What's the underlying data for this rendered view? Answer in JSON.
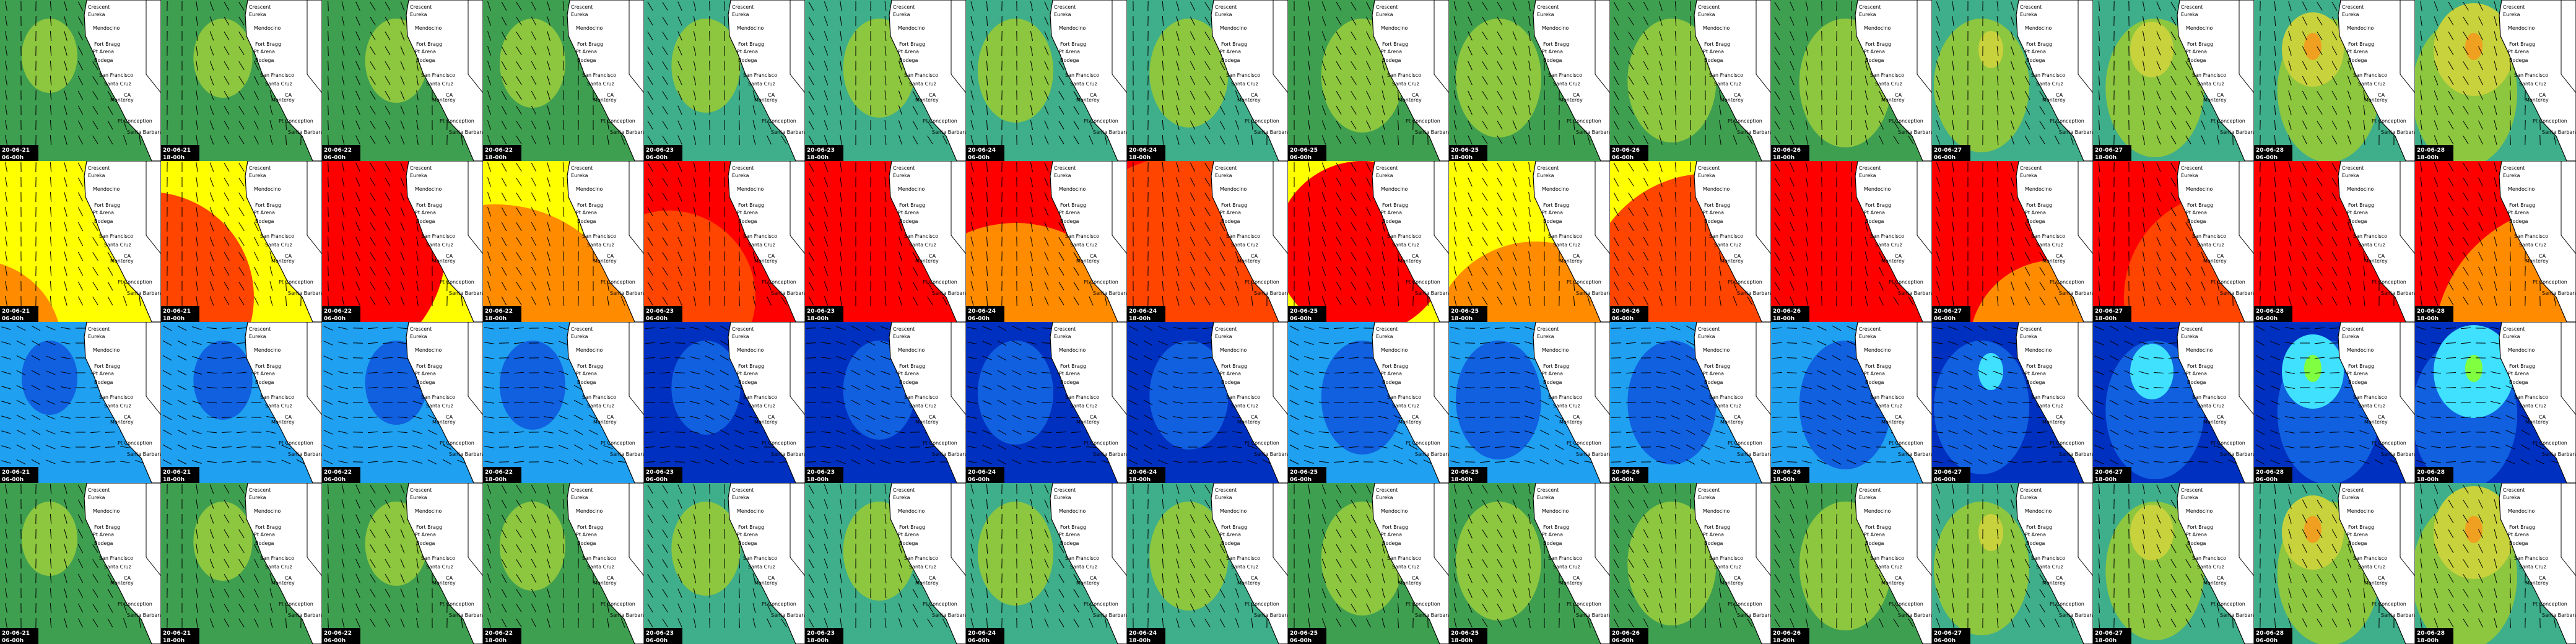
{
  "places": [
    "Crescent",
    "Eureka",
    "Mendocino",
    "Fort Bragg",
    "Pt Arena",
    "Bodega",
    "San Francisco",
    "Santa Cruz",
    "Monterey",
    "Pt Conception",
    "Santa Barbara",
    "CA"
  ],
  "dates": [
    "20-06-21",
    "20-06-21",
    "20-06-22",
    "20-06-22",
    "20-06-23",
    "20-06-23",
    "20-06-24",
    "20-06-24",
    "20-06-25",
    "20-06-25",
    "20-06-26",
    "20-06-26",
    "20-06-27",
    "20-06-27",
    "20-06-28",
    "20-06-28"
  ],
  "times": [
    "06-00h",
    "18-00h",
    "06-00h",
    "18-00h",
    "06-00h",
    "18-00h",
    "06-00h",
    "18-00h",
    "06-00h",
    "18-00h",
    "06-00h",
    "18-00h",
    "06-00h",
    "18-00h",
    "06-00h",
    "18-00h"
  ]
}
